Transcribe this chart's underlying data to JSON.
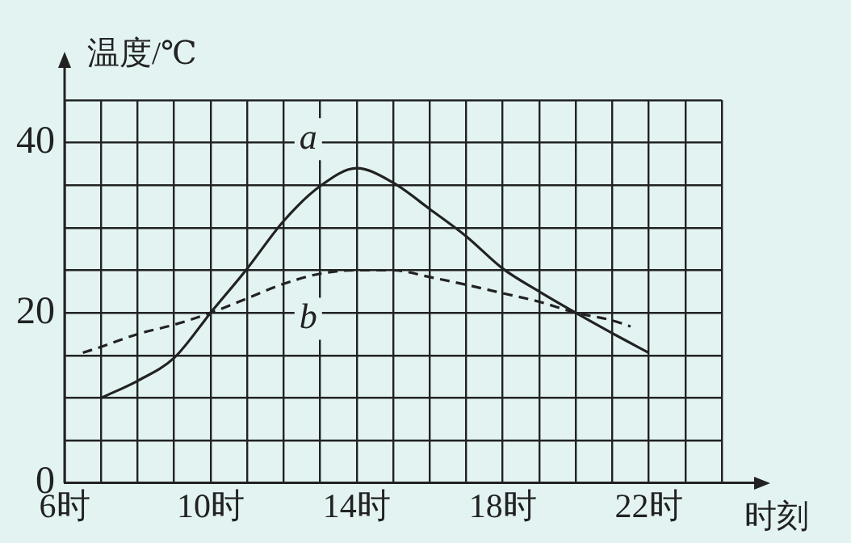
{
  "chart_data": {
    "type": "line",
    "xlabel": "时刻",
    "ylabel": "温度/℃",
    "xlim": [
      6,
      24
    ],
    "ylim": [
      0,
      45
    ],
    "xticks": [
      {
        "value": 6,
        "label": "6时"
      },
      {
        "value": 7,
        "label": null
      },
      {
        "value": 8,
        "label": null
      },
      {
        "value": 9,
        "label": null
      },
      {
        "value": 10,
        "label": "10时"
      },
      {
        "value": 11,
        "label": null
      },
      {
        "value": 12,
        "label": null
      },
      {
        "value": 13,
        "label": null
      },
      {
        "value": 14,
        "label": "14时"
      },
      {
        "value": 15,
        "label": null
      },
      {
        "value": 16,
        "label": null
      },
      {
        "value": 17,
        "label": null
      },
      {
        "value": 18,
        "label": "18时"
      },
      {
        "value": 19,
        "label": null
      },
      {
        "value": 20,
        "label": null
      },
      {
        "value": 21,
        "label": null
      },
      {
        "value": 22,
        "label": "22时"
      },
      {
        "value": 23,
        "label": null
      },
      {
        "value": 24,
        "label": null
      }
    ],
    "yticks": [
      0,
      {
        "value": 5,
        "label": null
      },
      {
        "value": 10,
        "label": null
      },
      {
        "value": 15,
        "label": null
      },
      20,
      {
        "value": 25,
        "label": null
      },
      {
        "value": 30,
        "label": null
      },
      {
        "value": 35,
        "label": null
      },
      40,
      {
        "value": 45,
        "label": null
      }
    ],
    "grid": true,
    "legend": false,
    "marker": "none",
    "series": [
      {
        "name": "a",
        "color": "#222222",
        "line_style": "solid",
        "x": [
          7,
          8,
          9,
          10,
          11,
          12,
          13,
          14,
          15,
          16,
          17,
          18,
          19,
          20,
          21,
          22
        ],
        "values": [
          10,
          12,
          14.7,
          20,
          25.2,
          30.8,
          34.9,
          37,
          35.3,
          32.2,
          29,
          25.2,
          22.5,
          20,
          17.6,
          15.3
        ]
      },
      {
        "name": "b",
        "color": "#222222",
        "line_style": "dashed",
        "x": [
          6.5,
          7,
          8,
          9,
          10,
          11,
          12,
          13,
          14,
          15,
          16,
          17,
          18,
          19,
          20,
          21,
          21.5
        ],
        "values": [
          15.3,
          16,
          17.5,
          18.6,
          20,
          21.7,
          23.4,
          24.6,
          25,
          25,
          24.2,
          23.3,
          22.3,
          21.3,
          20,
          19.1,
          18.4
        ]
      }
    ]
  }
}
